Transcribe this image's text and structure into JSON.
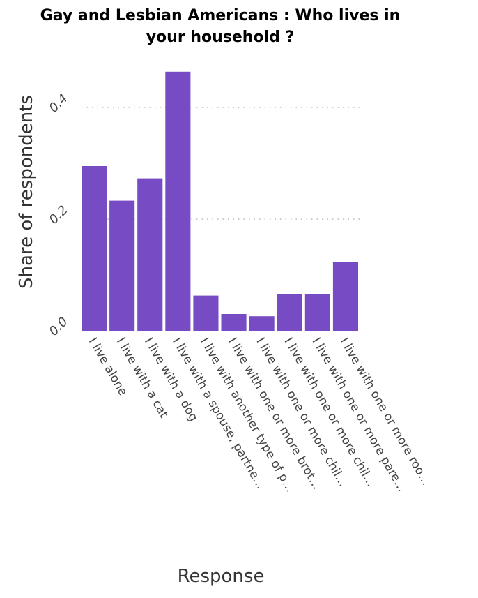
{
  "chart_data": {
    "type": "bar",
    "title_lines": [
      "Gay and Lesbian Americans : Who lives in",
      "your household ?"
    ],
    "xlabel": "Response",
    "ylabel": "Share of respondents",
    "ylim": [
      0,
      0.5
    ],
    "yticks": [
      0.0,
      0.2,
      0.4
    ],
    "ytick_labels": [
      "0.0",
      "0.2",
      "0.4"
    ],
    "grid": "horizontal dotted",
    "bar_color": "#764bc4",
    "categories": [
      "I live alone",
      "I live with a cat",
      "I live with a dog",
      "I live with a spouse, partne…",
      "I live with another type of p…",
      "I live with one or more brot…",
      "I live with one or more chil…",
      "I live with one or more chil…",
      "I live with one or more pare…",
      "I live with one or more roo…"
    ],
    "values": [
      0.295,
      0.233,
      0.273,
      0.464,
      0.063,
      0.03,
      0.026,
      0.066,
      0.066,
      0.123
    ]
  }
}
